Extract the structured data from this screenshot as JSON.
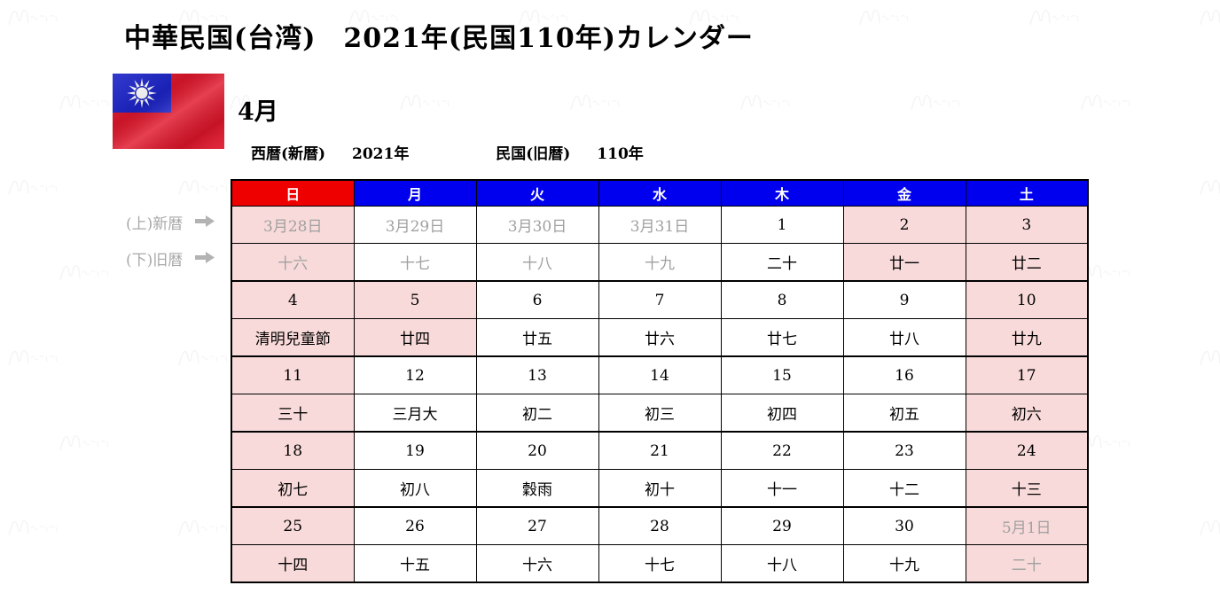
{
  "title": "中華民国(台湾)　2021年(民国110年)カレンダー",
  "month_label": "4月",
  "era": {
    "western_label": "西暦(新暦)",
    "western_value": "2021年",
    "minguo_label": "民国(旧暦)",
    "minguo_value": "110年"
  },
  "row_notes": {
    "new_calendar": "(上)新暦",
    "old_calendar": "(下)旧暦"
  },
  "flag": {
    "name": "taiwan-flag",
    "field_color": "#e0162b",
    "canton_color": "#1c24c8",
    "sun_color": "#ffffff"
  },
  "colors": {
    "sunday_header_bg": "#ee0000",
    "weekday_header_bg": "#0000ee",
    "header_text": "#ffffff",
    "holiday_cell_bg": "#f9dada",
    "other_month_text": "#a0a0a0",
    "border": "#000000"
  },
  "weekday_headers": [
    {
      "label": "日",
      "bg": "#ee0000"
    },
    {
      "label": "月",
      "bg": "#0000ee"
    },
    {
      "label": "火",
      "bg": "#0000ee"
    },
    {
      "label": "水",
      "bg": "#0000ee"
    },
    {
      "label": "木",
      "bg": "#0000ee"
    },
    {
      "label": "金",
      "bg": "#0000ee"
    },
    {
      "label": "土",
      "bg": "#0000ee"
    }
  ],
  "calendar": {
    "weeks": [
      {
        "days": [
          {
            "new": "3月28日",
            "old": "十六",
            "pink": true,
            "gray": true
          },
          {
            "new": "3月29日",
            "old": "十七",
            "pink": false,
            "gray": true
          },
          {
            "new": "3月30日",
            "old": "十八",
            "pink": false,
            "gray": true
          },
          {
            "new": "3月31日",
            "old": "十九",
            "pink": false,
            "gray": true
          },
          {
            "new": "1",
            "old": "二十",
            "pink": false,
            "gray": false
          },
          {
            "new": "2",
            "old": "廿一",
            "pink": true,
            "gray": false
          },
          {
            "new": "3",
            "old": "廿二",
            "pink": true,
            "gray": false
          }
        ]
      },
      {
        "days": [
          {
            "new": "4",
            "old": "清明兒童節",
            "pink": true,
            "gray": false
          },
          {
            "new": "5",
            "old": "廿四",
            "pink": true,
            "gray": false
          },
          {
            "new": "6",
            "old": "廿五",
            "pink": false,
            "gray": false
          },
          {
            "new": "7",
            "old": "廿六",
            "pink": false,
            "gray": false
          },
          {
            "new": "8",
            "old": "廿七",
            "pink": false,
            "gray": false
          },
          {
            "new": "9",
            "old": "廿八",
            "pink": false,
            "gray": false
          },
          {
            "new": "10",
            "old": "廿九",
            "pink": true,
            "gray": false
          }
        ]
      },
      {
        "days": [
          {
            "new": "11",
            "old": "三十",
            "pink": true,
            "gray": false
          },
          {
            "new": "12",
            "old": "三月大",
            "pink": false,
            "gray": false
          },
          {
            "new": "13",
            "old": "初二",
            "pink": false,
            "gray": false
          },
          {
            "new": "14",
            "old": "初三",
            "pink": false,
            "gray": false
          },
          {
            "new": "15",
            "old": "初四",
            "pink": false,
            "gray": false
          },
          {
            "new": "16",
            "old": "初五",
            "pink": false,
            "gray": false
          },
          {
            "new": "17",
            "old": "初六",
            "pink": true,
            "gray": false
          }
        ]
      },
      {
        "days": [
          {
            "new": "18",
            "old": "初七",
            "pink": true,
            "gray": false
          },
          {
            "new": "19",
            "old": "初八",
            "pink": false,
            "gray": false
          },
          {
            "new": "20",
            "old": "穀雨",
            "pink": false,
            "gray": false
          },
          {
            "new": "21",
            "old": "初十",
            "pink": false,
            "gray": false
          },
          {
            "new": "22",
            "old": "十一",
            "pink": false,
            "gray": false
          },
          {
            "new": "23",
            "old": "十二",
            "pink": false,
            "gray": false
          },
          {
            "new": "24",
            "old": "十三",
            "pink": true,
            "gray": false
          }
        ]
      },
      {
        "days": [
          {
            "new": "25",
            "old": "十四",
            "pink": true,
            "gray": false
          },
          {
            "new": "26",
            "old": "十五",
            "pink": false,
            "gray": false
          },
          {
            "new": "27",
            "old": "十六",
            "pink": false,
            "gray": false
          },
          {
            "new": "28",
            "old": "十七",
            "pink": false,
            "gray": false
          },
          {
            "new": "29",
            "old": "十八",
            "pink": false,
            "gray": false
          },
          {
            "new": "30",
            "old": "十九",
            "pink": false,
            "gray": false
          },
          {
            "new": "5月1日",
            "old": "二十",
            "pink": true,
            "gray": true
          }
        ]
      }
    ]
  }
}
